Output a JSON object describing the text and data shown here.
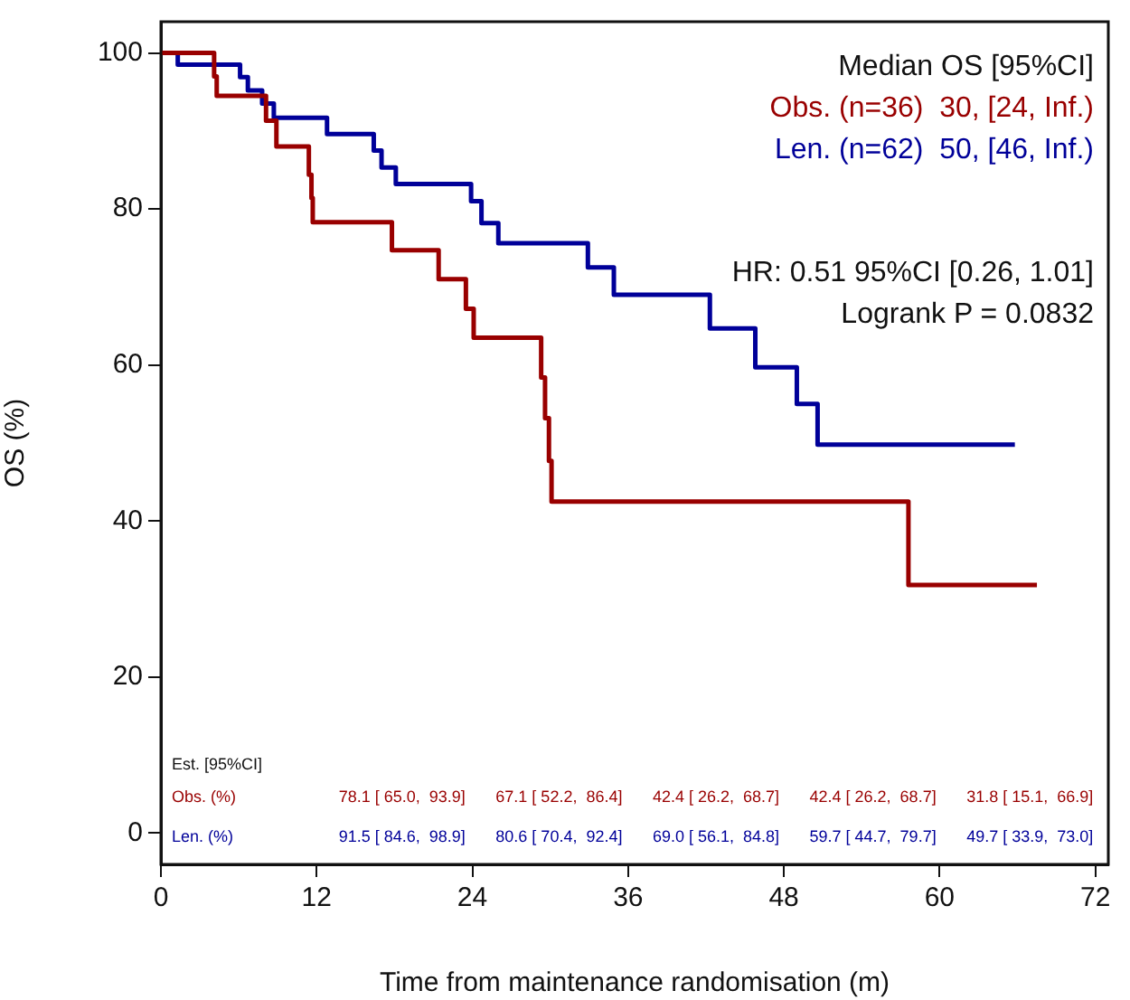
{
  "chart_data": {
    "type": "step",
    "xlabel": "Time from maintenance randomisation (m)",
    "ylabel": "OS (%)",
    "legend": "top right",
    "legend_title": "Median OS [95%CI]",
    "xlim": [
      0,
      73
    ],
    "ylim": [
      -4,
      104
    ],
    "xticks": [
      0,
      12,
      24,
      36,
      48,
      60,
      72
    ],
    "yticks": [
      0,
      20,
      40,
      60,
      80,
      100
    ],
    "grid": false,
    "series": [
      {
        "name": "Obs. (n=36)  30, [24, Inf.)",
        "color": "#990000",
        "x": [
          0,
          4.1,
          4.3,
          8.1,
          8.9,
          11.4,
          11.6,
          11.7,
          17.8,
          21.4,
          23.5,
          24.1,
          29.3,
          29.6,
          29.9,
          30.1,
          57.6,
          67.5
        ],
        "values": [
          100,
          97,
          94.5,
          91.3,
          88,
          84.4,
          81.4,
          78.3,
          74.7,
          71,
          67.2,
          63.5,
          58.4,
          53.2,
          47.7,
          42.5,
          31.8,
          31.8
        ]
      },
      {
        "name": "Len. (n=62)  50, [46, Inf.)",
        "color": "#000099",
        "x": [
          0,
          1.3,
          6.1,
          6.7,
          7.8,
          8.7,
          12.8,
          16.4,
          17,
          18.1,
          23.9,
          24.7,
          26,
          32.9,
          34.9,
          42.3,
          45.8,
          49,
          50.6,
          65.8
        ],
        "values": [
          100,
          98.5,
          96.9,
          95.2,
          93.5,
          91.7,
          89.6,
          87.5,
          85.3,
          83.2,
          81,
          78.2,
          75.6,
          72.5,
          69,
          64.7,
          59.7,
          55,
          49.8,
          49.8
        ]
      }
    ],
    "annotations": [
      "HR: 0.51 95%CI [0.26, 1.01]",
      "Logrank P = 0.0832",
      "Est. [95%CI]",
      "Obs. (%)",
      "78.1 [ 65.0,  93.9]",
      "67.1 [ 52.2,  86.4]",
      "42.4 [ 26.2,  68.7]",
      "42.4 [ 26.2,  68.7]",
      "31.8 [ 15.1,  66.9]",
      "Len. (%)",
      "91.5 [ 84.6,  98.9]",
      "80.6 [ 70.4,  92.4]",
      "69.0 [ 56.1,  84.8]",
      "59.7 [ 44.7,  79.7]",
      "49.7 [ 33.9,  73.0]"
    ]
  }
}
